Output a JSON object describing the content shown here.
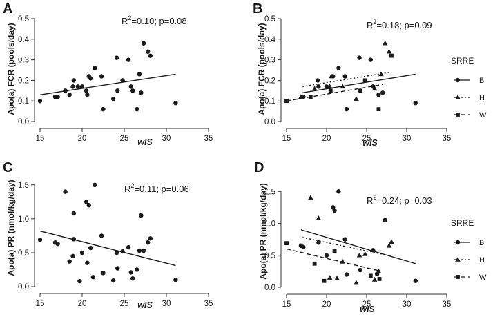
{
  "colors": {
    "ink": "#1a1a1a",
    "axis": "#333333",
    "background": "#ffffff"
  },
  "chart_data": [
    {
      "panel": "A",
      "type": "scatter",
      "xlabel": "wIS",
      "ylabel": "Apo(a) FCR (pools/day)",
      "xlim": [
        15,
        35
      ],
      "ylim": [
        0,
        0.5
      ],
      "xticks": [
        15,
        20,
        25,
        30,
        35
      ],
      "yticks": [
        0.0,
        0.1,
        0.2,
        0.3,
        0.4,
        0.5
      ],
      "annotation": {
        "r2_prefix": "R",
        "r2_sup": "2",
        "r2_text": "=0.10; p=0.08"
      },
      "series": [
        {
          "name": "all",
          "marker": "circle",
          "points": [
            [
              15.0,
              0.1
            ],
            [
              16.8,
              0.12
            ],
            [
              17.1,
              0.12
            ],
            [
              18.0,
              0.15
            ],
            [
              18.5,
              0.13
            ],
            [
              18.9,
              0.17
            ],
            [
              19.0,
              0.2
            ],
            [
              19.5,
              0.17
            ],
            [
              20.0,
              0.17
            ],
            [
              20.5,
              0.15
            ],
            [
              20.6,
              0.13
            ],
            [
              20.8,
              0.22
            ],
            [
              21.0,
              0.21
            ],
            [
              21.5,
              0.26
            ],
            [
              22.3,
              0.22
            ],
            [
              22.5,
              0.06
            ],
            [
              23.7,
              0.11
            ],
            [
              24.1,
              0.31
            ],
            [
              24.2,
              0.15
            ],
            [
              24.8,
              0.2
            ],
            [
              25.5,
              0.3
            ],
            [
              25.8,
              0.17
            ],
            [
              26.0,
              0.15
            ],
            [
              26.5,
              0.06
            ],
            [
              26.8,
              0.23
            ],
            [
              27.0,
              0.14
            ],
            [
              27.3,
              0.38
            ],
            [
              27.8,
              0.34
            ],
            [
              28.1,
              0.32
            ],
            [
              31.1,
              0.09
            ]
          ]
        }
      ],
      "fits": [
        {
          "name": "all",
          "style": "solid",
          "x": [
            15.0,
            31.1
          ],
          "y": [
            0.13,
            0.23
          ]
        }
      ]
    },
    {
      "panel": "B",
      "type": "scatter",
      "xlabel": "wIS",
      "ylabel": "Apo(a) FCR (pools/day)",
      "xlim": [
        15,
        35
      ],
      "ylim": [
        0,
        0.5
      ],
      "xticks": [
        15,
        20,
        25,
        30,
        35
      ],
      "yticks": [
        0.0,
        0.1,
        0.2,
        0.3,
        0.4,
        0.5
      ],
      "annotation": {
        "r2_prefix": "R",
        "r2_sup": "2",
        "r2_text": "=0.18; p=0.09"
      },
      "legend": {
        "title": "SRRE",
        "items": [
          {
            "label": "B",
            "marker": "circle",
            "style": "solid"
          },
          {
            "label": "H",
            "marker": "triangle",
            "style": "dotted"
          },
          {
            "label": "W",
            "marker": "square",
            "style": "dashed"
          }
        ]
      },
      "series": [
        {
          "name": "B",
          "marker": "circle",
          "points": [
            [
              17.1,
              0.12
            ],
            [
              18.9,
              0.2
            ],
            [
              19.0,
              0.17
            ],
            [
              20.0,
              0.17
            ],
            [
              20.8,
              0.22
            ],
            [
              21.5,
              0.26
            ],
            [
              22.3,
              0.22
            ],
            [
              22.5,
              0.06
            ],
            [
              24.1,
              0.31
            ],
            [
              24.2,
              0.15
            ],
            [
              25.5,
              0.3
            ],
            [
              25.8,
              0.17
            ],
            [
              26.5,
              0.13
            ],
            [
              27.0,
              0.14
            ],
            [
              31.1,
              0.09
            ]
          ]
        },
        {
          "name": "H",
          "marker": "triangle",
          "points": [
            [
              16.8,
              0.12
            ],
            [
              18.5,
              0.16
            ],
            [
              20.4,
              0.17
            ],
            [
              20.6,
              0.22
            ],
            [
              22.0,
              0.17
            ],
            [
              23.7,
              0.11
            ],
            [
              26.0,
              0.16
            ],
            [
              26.8,
              0.23
            ],
            [
              27.3,
              0.38
            ],
            [
              27.8,
              0.34
            ]
          ]
        },
        {
          "name": "W",
          "marker": "square",
          "points": [
            [
              15.0,
              0.1
            ],
            [
              18.0,
              0.12
            ],
            [
              20.5,
              0.15
            ],
            [
              24.8,
              0.2
            ],
            [
              26.5,
              0.06
            ],
            [
              28.1,
              0.32
            ]
          ]
        }
      ],
      "fits": [
        {
          "name": "B",
          "style": "solid",
          "x": [
            17.0,
            31.1
          ],
          "y": [
            0.14,
            0.23
          ]
        },
        {
          "name": "H",
          "style": "dotted",
          "x": [
            17.0,
            28.0
          ],
          "y": [
            0.17,
            0.24
          ]
        },
        {
          "name": "W",
          "style": "dashed",
          "x": [
            15.0,
            27.0
          ],
          "y": [
            0.1,
            0.18
          ]
        }
      ]
    },
    {
      "panel": "C",
      "type": "scatter",
      "xlabel": "wIS",
      "ylabel": "Apo(a) PR (nmol/kg/day)",
      "xlim": [
        15,
        35
      ],
      "ylim": [
        0,
        1.6
      ],
      "xticks": [
        15,
        20,
        25,
        30,
        35
      ],
      "yticks": [
        0.0,
        0.5,
        1.0,
        1.5
      ],
      "annotation": {
        "r2_prefix": "R",
        "r2_sup": "2",
        "r2_text": "=0.11; p=0.06"
      },
      "series": [
        {
          "name": "all",
          "marker": "circle",
          "points": [
            [
              15.0,
              0.69
            ],
            [
              16.8,
              0.65
            ],
            [
              17.1,
              0.63
            ],
            [
              18.0,
              1.4
            ],
            [
              18.5,
              0.37
            ],
            [
              18.9,
              0.45
            ],
            [
              19.0,
              1.08
            ],
            [
              19.0,
              0.7
            ],
            [
              19.7,
              0.08
            ],
            [
              20.0,
              0.5
            ],
            [
              20.5,
              1.25
            ],
            [
              20.6,
              0.35
            ],
            [
              20.8,
              1.2
            ],
            [
              21.0,
              0.57
            ],
            [
              21.3,
              0.14
            ],
            [
              21.5,
              1.5
            ],
            [
              22.3,
              0.75
            ],
            [
              22.5,
              0.2
            ],
            [
              23.7,
              0.09
            ],
            [
              24.1,
              0.5
            ],
            [
              24.2,
              0.27
            ],
            [
              24.8,
              0.52
            ],
            [
              25.5,
              0.58
            ],
            [
              25.8,
              0.21
            ],
            [
              26.0,
              0.12
            ],
            [
              26.5,
              0.25
            ],
            [
              26.8,
              0.53
            ],
            [
              27.0,
              1.05
            ],
            [
              27.3,
              0.53
            ],
            [
              27.8,
              0.65
            ],
            [
              28.1,
              0.71
            ],
            [
              31.1,
              0.1
            ]
          ]
        }
      ],
      "fits": [
        {
          "name": "all",
          "style": "solid",
          "x": [
            15.0,
            31.1
          ],
          "y": [
            0.82,
            0.31
          ]
        }
      ]
    },
    {
      "panel": "D",
      "type": "scatter",
      "xlabel": "wIS",
      "ylabel": "Apo(a) PR (nmol/kg/day)",
      "xlim": [
        15,
        35
      ],
      "ylim": [
        0,
        1.6
      ],
      "xticks": [
        15,
        20,
        25,
        30,
        35
      ],
      "yticks": [
        0.0,
        0.5,
        1.0,
        1.5
      ],
      "annotation": {
        "r2_prefix": "R",
        "r2_sup": "2",
        "r2_text": "=0.24; p=0.03"
      },
      "legend": {
        "title": "SRRE",
        "items": [
          {
            "label": "B",
            "marker": "circle",
            "style": "solid"
          },
          {
            "label": "H",
            "marker": "triangle",
            "style": "dotted"
          },
          {
            "label": "W",
            "marker": "square",
            "style": "dashed"
          }
        ]
      },
      "series": [
        {
          "name": "B",
          "marker": "circle",
          "points": [
            [
              16.8,
              0.65
            ],
            [
              17.1,
              0.63
            ],
            [
              19.0,
              0.7
            ],
            [
              20.0,
              0.5
            ],
            [
              20.8,
              1.25
            ],
            [
              21.0,
              1.2
            ],
            [
              21.5,
              1.5
            ],
            [
              22.3,
              0.75
            ],
            [
              22.5,
              0.2
            ],
            [
              24.2,
              0.27
            ],
            [
              25.8,
              0.58
            ],
            [
              26.3,
              0.21
            ],
            [
              27.3,
              1.05
            ],
            [
              31.1,
              0.1
            ]
          ]
        },
        {
          "name": "H",
          "marker": "triangle",
          "points": [
            [
              18.0,
              1.4
            ],
            [
              19.0,
              1.08
            ],
            [
              20.4,
              0.15
            ],
            [
              21.3,
              0.14
            ],
            [
              22.0,
              0.4
            ],
            [
              23.7,
              0.07
            ],
            [
              24.1,
              0.5
            ],
            [
              24.8,
              0.52
            ],
            [
              26.0,
              0.12
            ],
            [
              26.5,
              0.25
            ],
            [
              27.8,
              0.65
            ],
            [
              28.1,
              0.71
            ]
          ]
        },
        {
          "name": "W",
          "marker": "square",
          "points": [
            [
              15.0,
              0.69
            ],
            [
              18.5,
              0.37
            ],
            [
              19.7,
              0.1
            ],
            [
              21.0,
              0.57
            ],
            [
              25.5,
              0.18
            ],
            [
              26.6,
              0.13
            ]
          ]
        }
      ],
      "fits": [
        {
          "name": "B",
          "style": "solid",
          "x": [
            16.8,
            31.1
          ],
          "y": [
            0.9,
            0.37
          ]
        },
        {
          "name": "H",
          "style": "dotted",
          "x": [
            17.0,
            28.0
          ],
          "y": [
            0.78,
            0.49
          ]
        },
        {
          "name": "W",
          "style": "dashed",
          "x": [
            15.0,
            26.5
          ],
          "y": [
            0.6,
            0.26
          ]
        }
      ]
    }
  ]
}
